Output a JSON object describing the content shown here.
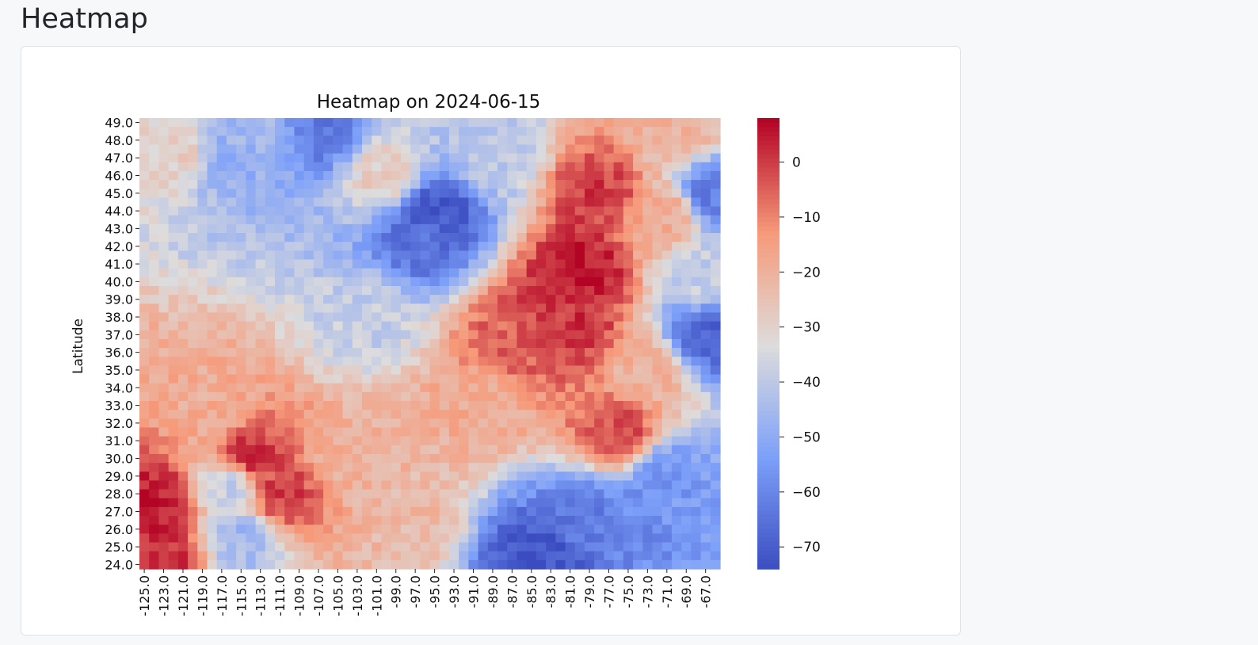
{
  "page": {
    "title": "Heatmap"
  },
  "chart_data": {
    "type": "heatmap",
    "title": "Heatmap on 2024-06-15",
    "xlabel": "",
    "ylabel": "Latitude",
    "colormap": "coolwarm",
    "colorbar_range": [
      -74,
      8
    ],
    "colorbar_ticks": [
      0,
      -10,
      -20,
      -30,
      -40,
      -50,
      -60,
      -70
    ],
    "x_ticks": [
      -125.0,
      -123.0,
      -121.0,
      -119.0,
      -117.0,
      -115.0,
      -113.0,
      -111.0,
      -109.0,
      -107.0,
      -105.0,
      -103.0,
      -101.0,
      -99.0,
      -97.0,
      -95.0,
      -93.0,
      -91.0,
      -89.0,
      -87.0,
      -85.0,
      -83.0,
      -81.0,
      -79.0,
      -77.0,
      -75.0,
      -73.0,
      -71.0,
      -69.0,
      -67.0
    ],
    "y_ticks": [
      49.0,
      48.0,
      47.0,
      46.0,
      45.0,
      44.0,
      43.0,
      42.0,
      41.0,
      40.0,
      39.0,
      38.0,
      37.0,
      36.0,
      35.0,
      34.0,
      33.0,
      32.0,
      31.0,
      30.0,
      29.0,
      28.0,
      27.0,
      26.0,
      25.0,
      24.0
    ],
    "x_range": [
      -125.0,
      -66.0
    ],
    "x_step": 1.0,
    "y_range": [
      24.0,
      49.0
    ],
    "y_step": 0.5,
    "anchors": [
      {
        "lon": -124,
        "lat": 27.5,
        "value": 5
      },
      {
        "lon": -123,
        "lat": 24.5,
        "value": 2
      },
      {
        "lon": -114,
        "lat": 30,
        "value": 2
      },
      {
        "lon": -111,
        "lat": 28,
        "value": 0
      },
      {
        "lon": -80,
        "lat": 40.5,
        "value": 6
      },
      {
        "lon": -81,
        "lat": 37.5,
        "value": 2
      },
      {
        "lon": -83,
        "lat": 38,
        "value": 0
      },
      {
        "lon": -78,
        "lat": 45,
        "value": 0
      },
      {
        "lon": -76,
        "lat": 31.5,
        "value": -2
      },
      {
        "lon": -87,
        "lat": 36.5,
        "value": -5
      },
      {
        "lon": -95,
        "lat": 44,
        "value": -72
      },
      {
        "lon": -96,
        "lat": 42.5,
        "value": -65
      },
      {
        "lon": -107,
        "lat": 48.5,
        "value": -62
      },
      {
        "lon": -113,
        "lat": 48.5,
        "value": -45
      },
      {
        "lon": -116,
        "lat": 47,
        "value": -48
      },
      {
        "lon": -84,
        "lat": 24.5,
        "value": -72
      },
      {
        "lon": -80,
        "lat": 26.5,
        "value": -62
      },
      {
        "lon": -75,
        "lat": 26.5,
        "value": -58
      },
      {
        "lon": -71,
        "lat": 29,
        "value": -55
      },
      {
        "lon": -67,
        "lat": 37,
        "value": -68
      },
      {
        "lon": -66.5,
        "lat": 45,
        "value": -62
      },
      {
        "lon": -67,
        "lat": 40,
        "value": -38
      },
      {
        "lon": -115,
        "lat": 25.5,
        "value": -45
      },
      {
        "lon": -116,
        "lat": 28.5,
        "value": -38
      },
      {
        "lon": -102,
        "lat": 38,
        "value": -38
      },
      {
        "lon": -89,
        "lat": 47,
        "value": -40
      },
      {
        "lon": -118,
        "lat": 33,
        "value": -18
      },
      {
        "lon": -104,
        "lat": 30,
        "value": -20
      },
      {
        "lon": -98,
        "lat": 27,
        "value": -22
      },
      {
        "lon": -90,
        "lat": 33,
        "value": -18
      },
      {
        "lon": -100,
        "lat": 46,
        "value": -28
      },
      {
        "lon": -122,
        "lat": 47.5,
        "value": -28
      },
      {
        "lon": -73,
        "lat": 35,
        "value": -20
      },
      {
        "lon": -70,
        "lat": 48.5,
        "value": -20
      },
      {
        "lon": -71,
        "lat": 44,
        "value": -18
      }
    ]
  }
}
